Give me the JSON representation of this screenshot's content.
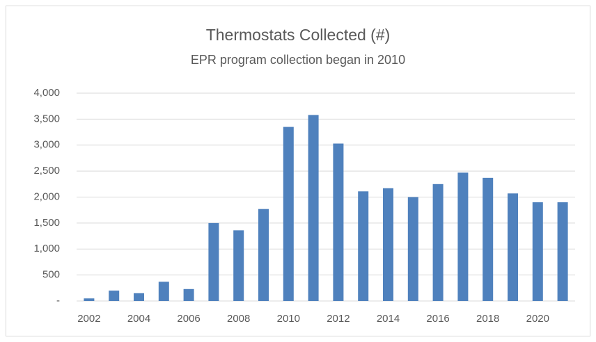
{
  "chart_data": {
    "type": "bar",
    "title": "Thermostats Collected (#)",
    "subtitle": "EPR program collection began in 2010",
    "categories": [
      "2002",
      null,
      "2004",
      null,
      "2006",
      null,
      "2008",
      null,
      "2010",
      null,
      "2012",
      null,
      "2014",
      null,
      "2016",
      null,
      "2018",
      null,
      "2020",
      null
    ],
    "values": [
      50,
      200,
      150,
      370,
      230,
      1500,
      1360,
      1770,
      3350,
      3580,
      3030,
      2110,
      2170,
      2000,
      2250,
      2470,
      2370,
      2070,
      1900,
      1900
    ],
    "color": "#4f81bd",
    "ylim": [
      0,
      4000
    ],
    "yticks": [
      {
        "value": 0,
        "label": "-"
      },
      500,
      {
        "value": 1000,
        "label": "1,000"
      },
      {
        "value": 1500,
        "label": "1,500"
      },
      {
        "value": 2000,
        "label": "2,000"
      },
      {
        "value": 2500,
        "label": "2,500"
      },
      {
        "value": 3000,
        "label": "3,000"
      },
      {
        "value": 3500,
        "label": "3,500"
      },
      {
        "value": 4000,
        "label": "4,000"
      }
    ],
    "grid": true
  }
}
